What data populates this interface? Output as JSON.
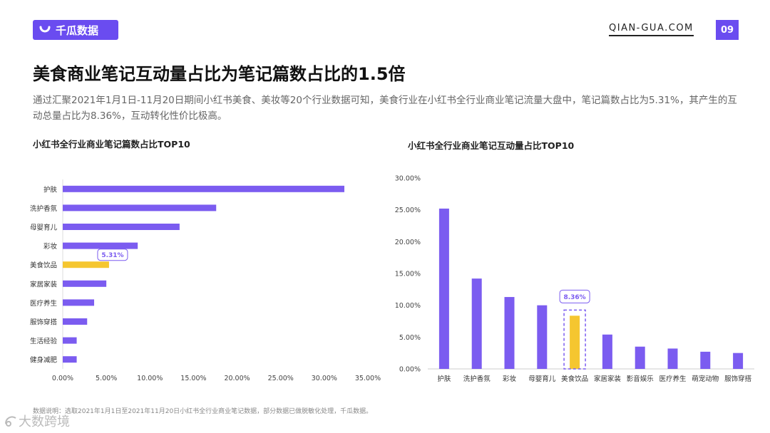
{
  "header": {
    "logo_text": "千瓜数据",
    "site": "QIAN-GUA.COM",
    "page_number": "09"
  },
  "title": "美食商业笔记互动量占比为笔记篇数占比的1.5倍",
  "description": "通过汇聚2021年1月1日-11月20日期间小红书美食、美妆等20个行业数据可知，美食行业在小红书全行业商业笔记流量大盘中，笔记篇数占比为5.31%，其产生的互动总量占比为8.36%，互动转化性价比极高。",
  "note": "数据说明：选取2021年1月1日至2021年11月20日小红书全行业商业笔记数据，部分数据已做脱敏化处理，千瓜数据。",
  "brand": "大数跨境",
  "colors": {
    "purple": "#7b5cf0",
    "highlight": "#f5c630",
    "accent": "#6a4cf0"
  },
  "chart_data": [
    {
      "type": "bar",
      "orientation": "horizontal",
      "title": "小红书全行业商业笔记篇数占比TOP10",
      "categories": [
        "护肤",
        "洗护香氛",
        "母婴育儿",
        "彩妆",
        "美食饮品",
        "家居家装",
        "医疗养生",
        "服饰穿搭",
        "生活经验",
        "健身减肥"
      ],
      "values": [
        32.3,
        17.6,
        13.4,
        8.6,
        5.31,
        5.0,
        3.6,
        2.8,
        1.6,
        1.6
      ],
      "highlight": "美食饮品",
      "highlight_label": "5.31%",
      "xlim": [
        0,
        35
      ],
      "ticks": [
        "0.00%",
        "5.00%",
        "10.00%",
        "15.00%",
        "20.00%",
        "25.00%",
        "30.00%",
        "35.00%"
      ]
    },
    {
      "type": "bar",
      "orientation": "vertical",
      "title": "小红书全行业商业笔记互动量占比TOP10",
      "categories": [
        "护肤",
        "洗护香氛",
        "彩妆",
        "母婴育儿",
        "美食饮品",
        "家居家装",
        "影音娱乐",
        "医疗养生",
        "萌宠动物",
        "服饰穿搭"
      ],
      "values": [
        25.2,
        14.2,
        11.3,
        10.0,
        8.36,
        5.4,
        3.5,
        3.2,
        2.7,
        2.5
      ],
      "highlight": "美食饮品",
      "highlight_label": "8.36%",
      "ylim": [
        0,
        30
      ],
      "ticks": [
        "0.00%",
        "5.00%",
        "10.00%",
        "15.00%",
        "20.00%",
        "25.00%",
        "30.00%"
      ]
    }
  ]
}
